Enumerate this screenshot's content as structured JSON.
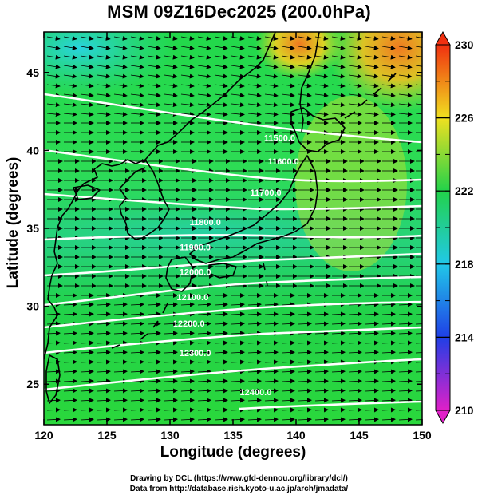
{
  "title": "MSM 09Z16Dec2025 (200.0hPa)",
  "xlabel": "Longitude (degrees)",
  "ylabel": "Latitude  (degrees)",
  "credits": {
    "line1": "Drawing by DCL (https://www.gfd-dennou.org/library/dcl/)",
    "line2": "Data from http://database.rish.kyoto-u.ac.jp/arch/jmadata/"
  },
  "chart_data": {
    "type": "map",
    "variable": "temperature shaded, geopotential height contours, wind vectors",
    "xlim": [
      120,
      150
    ],
    "ylim": [
      22.4,
      47.6
    ],
    "x_ticks": [
      120,
      125,
      130,
      135,
      140,
      145,
      150
    ],
    "y_ticks": [
      25,
      30,
      35,
      40,
      45
    ],
    "colorbar": {
      "min": 210,
      "max": 230,
      "tick_labels": [
        210,
        214,
        218,
        222,
        226,
        230
      ],
      "colors": [
        "#e020c8",
        "#1f3fe6",
        "#21c8e8",
        "#22d24a",
        "#f0e020",
        "#f03010"
      ]
    },
    "contour_labels": [
      {
        "text": "11500.0",
        "lon": 138.7,
        "lat": 40.6
      },
      {
        "text": "11600.0",
        "lon": 139.0,
        "lat": 39.1
      },
      {
        "text": "11700.0",
        "lon": 137.6,
        "lat": 37.1
      },
      {
        "text": "11800.0",
        "lon": 132.8,
        "lat": 35.2
      },
      {
        "text": "11900.0",
        "lon": 132.0,
        "lat": 33.6
      },
      {
        "text": "12000.0",
        "lon": 132.0,
        "lat": 32.0
      },
      {
        "text": "12100.0",
        "lon": 131.8,
        "lat": 30.4
      },
      {
        "text": "12200.0",
        "lon": 131.5,
        "lat": 28.7
      },
      {
        "text": "12300.0",
        "lon": 132.0,
        "lat": 26.8
      },
      {
        "text": "12400.0",
        "lon": 136.8,
        "lat": 24.3
      }
    ]
  }
}
